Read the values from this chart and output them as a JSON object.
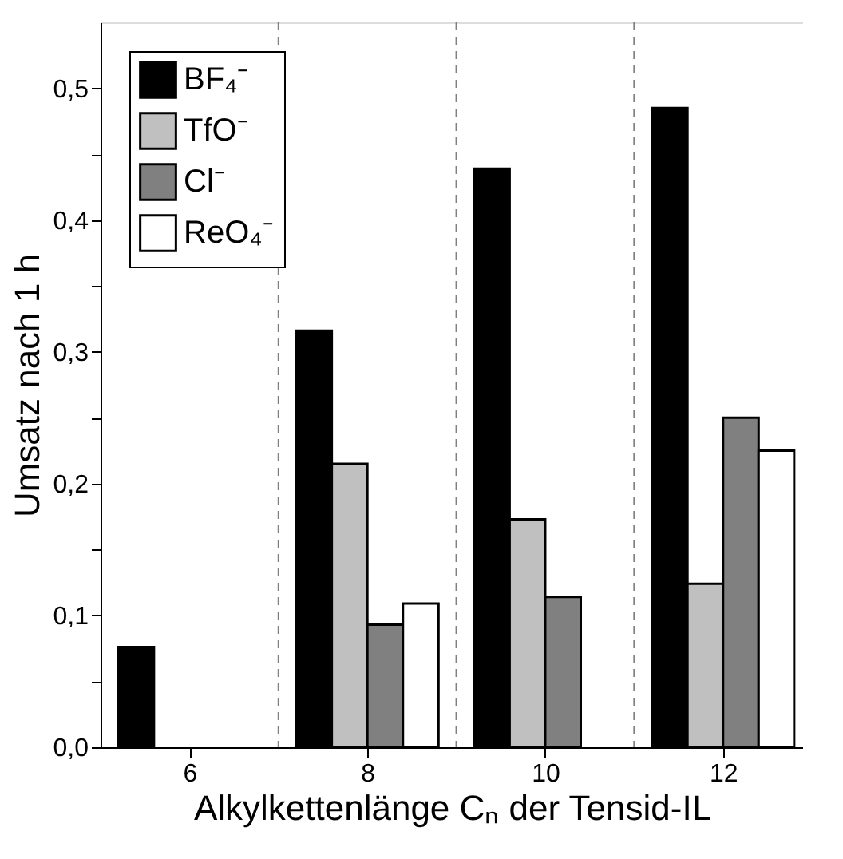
{
  "chart_data": {
    "type": "bar",
    "xlabel": "Alkylkettenlänge Cₙ der Tensid-IL",
    "ylabel": "Umsatz nach 1 h",
    "x": [
      6,
      8,
      10,
      12
    ],
    "xlim": [
      5,
      12.9
    ],
    "xticks": [
      {
        "value": 6,
        "label": "6"
      },
      {
        "value": 8,
        "label": "8"
      },
      {
        "value": 10,
        "label": "10"
      },
      {
        "value": 12,
        "label": "12"
      }
    ],
    "ylim": [
      0,
      0.55
    ],
    "yticks": [
      {
        "value": 0,
        "label": "0,0"
      },
      {
        "value": 0.05,
        "label": null
      },
      {
        "value": 0.1,
        "label": "0,1"
      },
      {
        "value": 0.15,
        "label": null
      },
      {
        "value": 0.2,
        "label": "0,2"
      },
      {
        "value": 0.25,
        "label": null
      },
      {
        "value": 0.3,
        "label": "0,3"
      },
      {
        "value": 0.35,
        "label": null
      },
      {
        "value": 0.4,
        "label": "0,4"
      },
      {
        "value": 0.45,
        "label": null
      },
      {
        "value": 0.5,
        "label": "0,5"
      }
    ],
    "series": [
      {
        "name": "BF₄⁻",
        "color": "#000000",
        "values": [
          0.076,
          0.316,
          0.439,
          0.485
        ]
      },
      {
        "name": "TfO⁻",
        "color": "#c0c0c0",
        "values": [
          null,
          0.215,
          0.173,
          0.124
        ]
      },
      {
        "name": "Cl⁻",
        "color": "#808080",
        "values": [
          null,
          0.093,
          0.114,
          0.25
        ]
      },
      {
        "name": "ReO₄⁻",
        "color": "#ffffff",
        "values": [
          null,
          0.109,
          null,
          0.225
        ]
      }
    ],
    "ref_lines": [
      {
        "axis": "x",
        "value": 7,
        "line_style": "dashed",
        "color": "#808080"
      },
      {
        "axis": "x",
        "value": 9,
        "line_style": "dashed",
        "color": "#808080"
      },
      {
        "axis": "x",
        "value": 11,
        "line_style": "dashed",
        "color": "#808080"
      }
    ],
    "legend": "top left",
    "grid": false
  }
}
